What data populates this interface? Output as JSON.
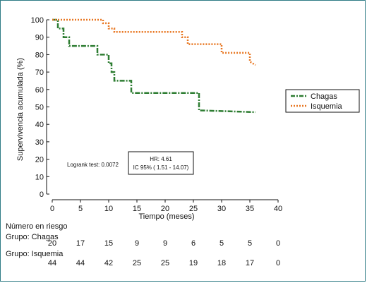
{
  "chart_data": {
    "type": "line",
    "step": true,
    "ylabel": "Supervivencia acumulada (%)",
    "xlabel": "Tiempo (meses)",
    "xlim": [
      0,
      40
    ],
    "ylim": [
      0,
      100
    ],
    "xticks": [
      0,
      5,
      10,
      15,
      20,
      25,
      30,
      35,
      40
    ],
    "yticks": [
      0,
      10,
      20,
      30,
      40,
      50,
      60,
      70,
      80,
      90,
      100
    ],
    "legend_position": "right",
    "series": [
      {
        "name": "Chagas",
        "color": "#2e7d32",
        "style": "dash-dot",
        "x": [
          0,
          1,
          1,
          2,
          2,
          3,
          3,
          8,
          8,
          10,
          10,
          10.5,
          10.5,
          11,
          11,
          12,
          12,
          14,
          14,
          24,
          24,
          26,
          26,
          36
        ],
        "y": [
          100,
          100,
          95,
          95,
          90,
          90,
          85,
          85,
          80,
          80,
          75,
          75,
          70,
          70,
          65,
          65,
          65,
          65,
          58,
          58,
          58,
          58,
          48,
          47
        ]
      },
      {
        "name": "Isquemia",
        "color": "#e87722",
        "style": "dotted",
        "x": [
          0,
          9,
          9,
          10,
          10,
          11,
          11,
          12,
          12,
          23,
          23,
          24,
          24,
          30,
          30,
          35,
          35,
          36
        ],
        "y": [
          100,
          100,
          98,
          98,
          95,
          95,
          93,
          93,
          93,
          93,
          90,
          90,
          86,
          86,
          81,
          81,
          76,
          74
        ]
      }
    ],
    "annotations": {
      "logrank": "Logrank test: 0.0072",
      "hr_line1": "HR: 4.61",
      "hr_line2": "IC 95% ( 1.51 - 14.07)"
    }
  },
  "risk_table": {
    "title": "Número en riesgo",
    "groups": [
      {
        "label": "Grupo: Chagas",
        "values": [
          "20",
          "17",
          "15",
          "9",
          "9",
          "6",
          "5",
          "5",
          "0"
        ]
      },
      {
        "label": "Grupo: Isquemia",
        "values": [
          "44",
          "44",
          "42",
          "25",
          "25",
          "19",
          "18",
          "17",
          "0"
        ]
      }
    ]
  }
}
